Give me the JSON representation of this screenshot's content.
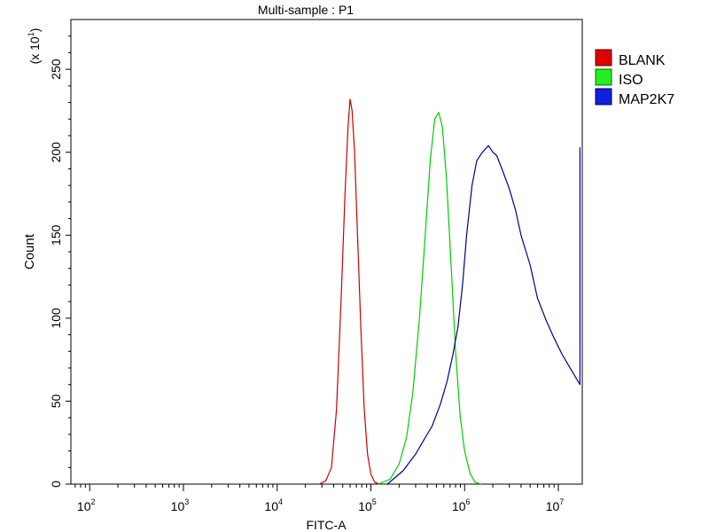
{
  "chart_data": {
    "type": "line",
    "title": "Multi-sample : P1",
    "xlabel": "FITC-A",
    "ylabel": "Count",
    "y_multiplier_label": "(x 10",
    "y_multiplier_exp": "1",
    "x_scale": "log",
    "xlim": [
      63,
      18000000
    ],
    "ylim": [
      0,
      280
    ],
    "x_tick_values": [
      100,
      1000,
      10000,
      100000,
      1000000,
      10000000
    ],
    "x_tick_labels": [
      {
        "base": "10",
        "exp": "2"
      },
      {
        "base": "10",
        "exp": "3"
      },
      {
        "base": "10",
        "exp": "4"
      },
      {
        "base": "10",
        "exp": "5"
      },
      {
        "base": "10",
        "exp": "6"
      },
      {
        "base": "10",
        "exp": "7"
      }
    ],
    "y_ticks": [
      0,
      50,
      100,
      150,
      200,
      250
    ],
    "y_tick_labels": [
      "0",
      "50",
      "100",
      "150",
      "200",
      "250"
    ],
    "legend": {
      "position": "right"
    },
    "series": [
      {
        "name": "BLANK",
        "color": "#cc0000",
        "points": [
          [
            28000,
            0
          ],
          [
            33000,
            2
          ],
          [
            38000,
            10
          ],
          [
            43000,
            45
          ],
          [
            48000,
            110
          ],
          [
            53000,
            175
          ],
          [
            57000,
            215
          ],
          [
            60000,
            232
          ],
          [
            63000,
            225
          ],
          [
            67000,
            200
          ],
          [
            72000,
            150
          ],
          [
            78000,
            95
          ],
          [
            85000,
            45
          ],
          [
            92000,
            18
          ],
          [
            100000,
            6
          ],
          [
            110000,
            1
          ],
          [
            125000,
            0
          ]
        ]
      },
      {
        "name": "ISO",
        "color": "#00cc00",
        "points": [
          [
            120000,
            0
          ],
          [
            160000,
            3
          ],
          [
            200000,
            12
          ],
          [
            240000,
            28
          ],
          [
            280000,
            55
          ],
          [
            330000,
            100
          ],
          [
            380000,
            150
          ],
          [
            430000,
            195
          ],
          [
            480000,
            220
          ],
          [
            530000,
            224
          ],
          [
            580000,
            215
          ],
          [
            640000,
            185
          ],
          [
            720000,
            130
          ],
          [
            800000,
            80
          ],
          [
            900000,
            40
          ],
          [
            1000000,
            20
          ],
          [
            1150000,
            6
          ],
          [
            1300000,
            1
          ],
          [
            1500000,
            0
          ]
        ]
      },
      {
        "name": "MAP2K7",
        "color": "#00008b",
        "points": [
          [
            150000,
            0
          ],
          [
            220000,
            8
          ],
          [
            300000,
            18
          ],
          [
            380000,
            28
          ],
          [
            450000,
            35
          ],
          [
            550000,
            48
          ],
          [
            650000,
            62
          ],
          [
            750000,
            78
          ],
          [
            850000,
            95
          ],
          [
            950000,
            120
          ],
          [
            1050000,
            150
          ],
          [
            1200000,
            180
          ],
          [
            1350000,
            195
          ],
          [
            1550000,
            200
          ],
          [
            1800000,
            204
          ],
          [
            2000000,
            200
          ],
          [
            2200000,
            198
          ],
          [
            2500000,
            190
          ],
          [
            3000000,
            178
          ],
          [
            3500000,
            165
          ],
          [
            4000000,
            150
          ],
          [
            5000000,
            132
          ],
          [
            6000000,
            112
          ],
          [
            7500000,
            98
          ],
          [
            9000000,
            88
          ],
          [
            11000000,
            78
          ],
          [
            14000000,
            68
          ],
          [
            17000000,
            60
          ],
          [
            17000000,
            203
          ]
        ]
      }
    ]
  }
}
